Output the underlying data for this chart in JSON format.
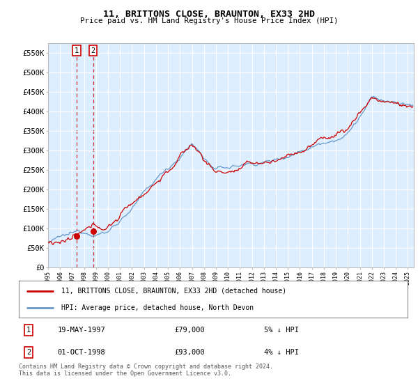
{
  "title": "11, BRITTONS CLOSE, BRAUNTON, EX33 2HD",
  "subtitle": "Price paid vs. HM Land Registry's House Price Index (HPI)",
  "legend_line1": "11, BRITTONS CLOSE, BRAUNTON, EX33 2HD (detached house)",
  "legend_line2": "HPI: Average price, detached house, North Devon",
  "transaction1_date": "19-MAY-1997",
  "transaction1_price": "£79,000",
  "transaction1_hpi": "5% ↓ HPI",
  "transaction2_date": "01-OCT-1998",
  "transaction2_price": "£93,000",
  "transaction2_hpi": "4% ↓ HPI",
  "footer": "Contains HM Land Registry data © Crown copyright and database right 2024.\nThis data is licensed under the Open Government Licence v3.0.",
  "sale_color": "#cc0000",
  "hpi_color": "#6699cc",
  "plot_bg_color": "#ddeeff",
  "grid_color": "#ffffff",
  "ylim": [
    0,
    575000
  ],
  "yticks": [
    0,
    50000,
    100000,
    150000,
    200000,
    250000,
    300000,
    350000,
    400000,
    450000,
    500000,
    550000
  ],
  "sale1_year": 1997.38,
  "sale1_price": 79000,
  "sale2_year": 1998.75,
  "sale2_price": 93000,
  "xmin": 1995,
  "xmax": 2025.5
}
